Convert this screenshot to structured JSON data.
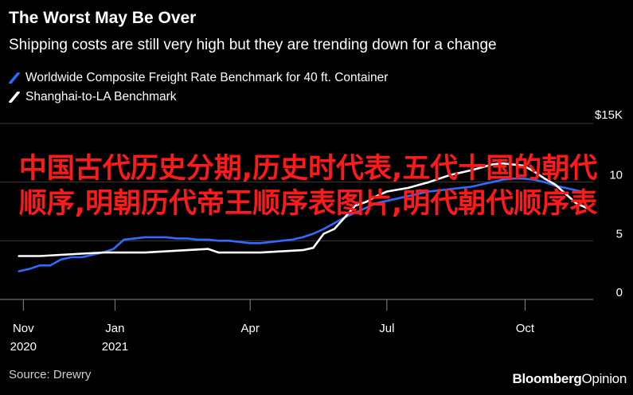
{
  "header": {
    "title": "The Worst May Be Over",
    "subtitle": "Shipping costs are still very high but they are trending down for a change"
  },
  "legend": [
    {
      "label": "Worldwide Composite Freight Rate Benchmark for 40 ft. Container",
      "color": "#2f6bff",
      "icon": "blue-slash-swatch"
    },
    {
      "label": "Shanghai-to-LA Benchmark",
      "color": "#ffffff",
      "icon": "white-slash-swatch"
    }
  ],
  "source": "Source: Drewry",
  "brand": {
    "name": "Bloomberg",
    "suffix": "Opinion"
  },
  "overlay": {
    "text": "中国古代历史分期,历史时代表,五代十国的朝代顺序,明朝历代帝王顺序表图片,明代朝代顺序表",
    "color": "#ff1a1a"
  },
  "chart_data": {
    "type": "line",
    "title": "The Worst May Be Over",
    "subtitle": "Shipping costs are still very high but they are trending down for a change",
    "y_unit_label": "$15K",
    "ylim": [
      0,
      15
    ],
    "y_ticks": [
      {
        "value": 0,
        "label": "0"
      },
      {
        "value": 5,
        "label": "5"
      },
      {
        "value": 10,
        "label": "10"
      },
      {
        "value": 15,
        "label": "$15K"
      }
    ],
    "xlim": [
      "2020-10-26",
      "2021-11-18"
    ],
    "x_ticks": [
      {
        "date": "2020-11-01",
        "label": "Nov",
        "sublabel": "2020"
      },
      {
        "date": "2021-01-01",
        "label": "Jan",
        "sublabel": "2021"
      },
      {
        "date": "2021-04-01",
        "label": "Apr",
        "sublabel": ""
      },
      {
        "date": "2021-07-01",
        "label": "Jul",
        "sublabel": ""
      },
      {
        "date": "2021-10-01",
        "label": "Oct",
        "sublabel": ""
      }
    ],
    "grid": true,
    "legend_position": "top-left",
    "series": [
      {
        "name": "Worldwide Composite Freight Rate Benchmark for 40 ft. Container",
        "color": "#2f6bff",
        "points": [
          {
            "x": "2020-10-29",
            "y": 2.4
          },
          {
            "x": "2020-11-05",
            "y": 2.6
          },
          {
            "x": "2020-11-12",
            "y": 2.9
          },
          {
            "x": "2020-11-19",
            "y": 2.9
          },
          {
            "x": "2020-11-26",
            "y": 3.4
          },
          {
            "x": "2020-12-03",
            "y": 3.6
          },
          {
            "x": "2020-12-10",
            "y": 3.6
          },
          {
            "x": "2020-12-17",
            "y": 3.8
          },
          {
            "x": "2020-12-24",
            "y": 4.0
          },
          {
            "x": "2020-12-31",
            "y": 4.3
          },
          {
            "x": "2021-01-07",
            "y": 5.1
          },
          {
            "x": "2021-01-14",
            "y": 5.2
          },
          {
            "x": "2021-01-21",
            "y": 5.3
          },
          {
            "x": "2021-01-28",
            "y": 5.3
          },
          {
            "x": "2021-02-04",
            "y": 5.3
          },
          {
            "x": "2021-02-11",
            "y": 5.2
          },
          {
            "x": "2021-02-18",
            "y": 5.2
          },
          {
            "x": "2021-02-25",
            "y": 5.1
          },
          {
            "x": "2021-03-04",
            "y": 5.1
          },
          {
            "x": "2021-03-11",
            "y": 5.0
          },
          {
            "x": "2021-03-18",
            "y": 5.0
          },
          {
            "x": "2021-03-25",
            "y": 4.9
          },
          {
            "x": "2021-04-01",
            "y": 4.8
          },
          {
            "x": "2021-04-08",
            "y": 4.8
          },
          {
            "x": "2021-04-15",
            "y": 4.9
          },
          {
            "x": "2021-04-22",
            "y": 5.0
          },
          {
            "x": "2021-04-29",
            "y": 5.1
          },
          {
            "x": "2021-05-06",
            "y": 5.3
          },
          {
            "x": "2021-05-13",
            "y": 5.6
          },
          {
            "x": "2021-05-20",
            "y": 6.0
          },
          {
            "x": "2021-05-27",
            "y": 6.5
          },
          {
            "x": "2021-06-03",
            "y": 7.0
          },
          {
            "x": "2021-06-10",
            "y": 7.4
          },
          {
            "x": "2021-06-17",
            "y": 7.8
          },
          {
            "x": "2021-06-24",
            "y": 8.2
          },
          {
            "x": "2021-07-01",
            "y": 8.4
          },
          {
            "x": "2021-07-08",
            "y": 8.6
          },
          {
            "x": "2021-07-15",
            "y": 8.8
          },
          {
            "x": "2021-07-22",
            "y": 9.0
          },
          {
            "x": "2021-07-29",
            "y": 9.2
          },
          {
            "x": "2021-08-05",
            "y": 9.3
          },
          {
            "x": "2021-08-12",
            "y": 9.4
          },
          {
            "x": "2021-08-19",
            "y": 9.5
          },
          {
            "x": "2021-08-26",
            "y": 9.6
          },
          {
            "x": "2021-09-02",
            "y": 9.8
          },
          {
            "x": "2021-09-09",
            "y": 10.0
          },
          {
            "x": "2021-09-16",
            "y": 10.2
          },
          {
            "x": "2021-09-23",
            "y": 10.3
          },
          {
            "x": "2021-09-30",
            "y": 10.3
          },
          {
            "x": "2021-10-07",
            "y": 10.2
          },
          {
            "x": "2021-10-14",
            "y": 10.0
          },
          {
            "x": "2021-10-21",
            "y": 9.7
          },
          {
            "x": "2021-10-28",
            "y": 9.5
          },
          {
            "x": "2021-11-04",
            "y": 9.3
          },
          {
            "x": "2021-11-11",
            "y": 9.1
          }
        ]
      },
      {
        "name": "Shanghai-to-LA Benchmark",
        "color": "#ffffff",
        "points": [
          {
            "x": "2020-10-29",
            "y": 3.7
          },
          {
            "x": "2020-11-12",
            "y": 3.7
          },
          {
            "x": "2020-11-26",
            "y": 3.8
          },
          {
            "x": "2020-12-10",
            "y": 3.9
          },
          {
            "x": "2020-12-24",
            "y": 4.0
          },
          {
            "x": "2021-01-07",
            "y": 4.0
          },
          {
            "x": "2021-01-21",
            "y": 4.0
          },
          {
            "x": "2021-02-04",
            "y": 4.1
          },
          {
            "x": "2021-02-18",
            "y": 4.2
          },
          {
            "x": "2021-03-04",
            "y": 4.3
          },
          {
            "x": "2021-03-11",
            "y": 4.0
          },
          {
            "x": "2021-03-25",
            "y": 4.0
          },
          {
            "x": "2021-04-08",
            "y": 4.0
          },
          {
            "x": "2021-04-22",
            "y": 4.1
          },
          {
            "x": "2021-05-06",
            "y": 4.2
          },
          {
            "x": "2021-05-13",
            "y": 4.4
          },
          {
            "x": "2021-05-20",
            "y": 5.6
          },
          {
            "x": "2021-05-27",
            "y": 6.0
          },
          {
            "x": "2021-06-03",
            "y": 7.0
          },
          {
            "x": "2021-06-10",
            "y": 8.0
          },
          {
            "x": "2021-06-17",
            "y": 8.3
          },
          {
            "x": "2021-06-24",
            "y": 8.8
          },
          {
            "x": "2021-07-01",
            "y": 9.2
          },
          {
            "x": "2021-07-15",
            "y": 9.5
          },
          {
            "x": "2021-07-29",
            "y": 10.0
          },
          {
            "x": "2021-08-12",
            "y": 10.6
          },
          {
            "x": "2021-08-26",
            "y": 11.0
          },
          {
            "x": "2021-09-09",
            "y": 11.5
          },
          {
            "x": "2021-09-16",
            "y": 11.6
          },
          {
            "x": "2021-09-23",
            "y": 11.5
          },
          {
            "x": "2021-09-30",
            "y": 11.4
          },
          {
            "x": "2021-10-07",
            "y": 10.9
          },
          {
            "x": "2021-10-14",
            "y": 10.3
          },
          {
            "x": "2021-10-21",
            "y": 9.8
          },
          {
            "x": "2021-10-28",
            "y": 9.0
          },
          {
            "x": "2021-11-04",
            "y": 8.2
          },
          {
            "x": "2021-11-11",
            "y": 7.8
          }
        ]
      }
    ]
  }
}
